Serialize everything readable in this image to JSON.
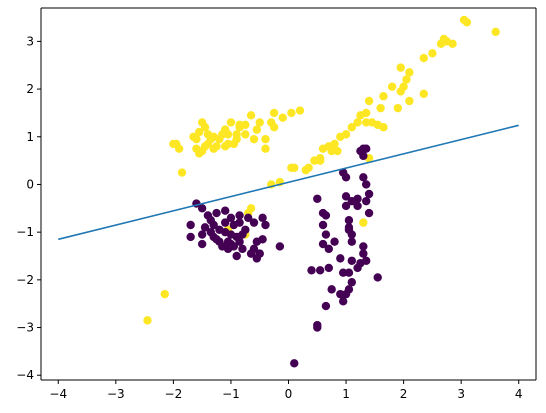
{
  "chart_data": {
    "type": "scatter",
    "title": "",
    "xlabel": "",
    "ylabel": "",
    "xlim": [
      -4.3,
      4.3
    ],
    "ylim": [
      -4.1,
      3.7
    ],
    "xticks": [
      -4,
      -3,
      -2,
      -1,
      0,
      1,
      2,
      3,
      4
    ],
    "xtick_labels": [
      "−4",
      "−3",
      "−2",
      "−1",
      "0",
      "1",
      "2",
      "3",
      "4"
    ],
    "yticks": [
      -4,
      -3,
      -2,
      -1,
      0,
      1,
      2,
      3
    ],
    "ytick_labels": [
      "−4",
      "−3",
      "−2",
      "−1",
      "0",
      "1",
      "2",
      "3"
    ],
    "grid": false,
    "colors": {
      "class_1": "#fde725",
      "class_0": "#440154",
      "line": "#1f77b4"
    },
    "series": [
      {
        "class": 1,
        "color": "#fde725",
        "points": [
          [
            3.05,
            3.45
          ],
          [
            3.1,
            3.4
          ],
          [
            2.7,
            3.05
          ],
          [
            2.75,
            3.0
          ],
          [
            2.85,
            2.95
          ],
          [
            2.65,
            2.95
          ],
          [
            3.6,
            3.2
          ],
          [
            2.5,
            2.75
          ],
          [
            2.35,
            2.65
          ],
          [
            1.95,
            2.45
          ],
          [
            2.1,
            2.35
          ],
          [
            2.05,
            2.2
          ],
          [
            2.0,
            2.05
          ],
          [
            1.95,
            1.95
          ],
          [
            1.8,
            2.05
          ],
          [
            2.1,
            1.75
          ],
          [
            1.9,
            1.6
          ],
          [
            2.35,
            1.9
          ],
          [
            1.65,
            1.85
          ],
          [
            1.6,
            1.6
          ],
          [
            1.4,
            1.75
          ],
          [
            1.25,
            1.45
          ],
          [
            1.45,
            1.3
          ],
          [
            1.35,
            1.3
          ],
          [
            1.2,
            1.3
          ],
          [
            1.35,
            1.5
          ],
          [
            1.1,
            1.2
          ],
          [
            1.65,
            1.2
          ],
          [
            1.55,
            1.25
          ],
          [
            1.0,
            1.05
          ],
          [
            0.9,
            1.0
          ],
          [
            0.8,
            0.85
          ],
          [
            0.85,
            0.7
          ],
          [
            0.7,
            0.8
          ],
          [
            0.6,
            0.75
          ],
          [
            0.55,
            0.5
          ],
          [
            0.55,
            0.55
          ],
          [
            0.45,
            0.5
          ],
          [
            0.35,
            0.35
          ],
          [
            0.3,
            0.3
          ],
          [
            0.1,
            0.35
          ],
          [
            0.75,
            0.7
          ],
          [
            1.4,
            0.55
          ],
          [
            0.05,
            1.5
          ],
          [
            0.2,
            1.55
          ],
          [
            -0.25,
            1.5
          ],
          [
            -0.1,
            1.4
          ],
          [
            -0.3,
            1.3
          ],
          [
            -0.25,
            1.2
          ],
          [
            -0.5,
            1.3
          ],
          [
            -0.65,
            1.45
          ],
          [
            -0.55,
            1.15
          ],
          [
            -0.4,
            0.95
          ],
          [
            -0.4,
            0.75
          ],
          [
            -0.6,
            0.95
          ],
          [
            -0.75,
            1.05
          ],
          [
            -0.75,
            1.25
          ],
          [
            -0.85,
            1.25
          ],
          [
            -0.9,
            1.05
          ],
          [
            -0.95,
            0.85
          ],
          [
            -1.0,
            1.3
          ],
          [
            -1.05,
            1.05
          ],
          [
            -1.05,
            0.85
          ],
          [
            -1.1,
            0.8
          ],
          [
            -1.1,
            1.15
          ],
          [
            -1.15,
            1.05
          ],
          [
            -1.2,
            0.95
          ],
          [
            -1.25,
            0.8
          ],
          [
            -1.3,
            1.0
          ],
          [
            -1.3,
            0.75
          ],
          [
            -1.35,
            0.95
          ],
          [
            -1.4,
            0.85
          ],
          [
            -1.45,
            0.8
          ],
          [
            -1.5,
            1.3
          ],
          [
            -1.5,
            0.7
          ],
          [
            -1.55,
            0.65
          ],
          [
            -1.6,
            0.95
          ],
          [
            -1.6,
            0.75
          ],
          [
            -1.65,
            1.0
          ],
          [
            -1.45,
            1.2
          ],
          [
            -1.4,
            1.05
          ],
          [
            -1.55,
            1.1
          ],
          [
            -1.9,
            0.75
          ],
          [
            -1.95,
            0.85
          ],
          [
            -2.0,
            0.85
          ],
          [
            -1.85,
            0.25
          ],
          [
            -0.85,
            1.2
          ],
          [
            -0.9,
            0.95
          ],
          [
            -0.3,
            0.0
          ],
          [
            -0.15,
            0.05
          ],
          [
            0.05,
            0.35
          ],
          [
            -0.65,
            -0.5
          ],
          [
            -0.7,
            -0.6
          ],
          [
            -0.75,
            -1.05
          ],
          [
            -1.05,
            -0.95
          ],
          [
            -2.15,
            -2.3
          ],
          [
            -2.45,
            -2.85
          ],
          [
            1.3,
            -0.8
          ]
        ]
      },
      {
        "class": 0,
        "color": "#440154",
        "points": [
          [
            -1.6,
            -0.4
          ],
          [
            -1.5,
            -0.5
          ],
          [
            -1.4,
            -0.65
          ],
          [
            -1.35,
            -0.75
          ],
          [
            -1.3,
            -0.85
          ],
          [
            -1.45,
            -0.9
          ],
          [
            -1.5,
            -1.05
          ],
          [
            -1.35,
            -1.0
          ],
          [
            -1.3,
            -1.1
          ],
          [
            -1.25,
            -0.6
          ],
          [
            -1.2,
            -0.95
          ],
          [
            -1.2,
            -1.2
          ],
          [
            -1.1,
            -0.55
          ],
          [
            -1.1,
            -0.8
          ],
          [
            -1.1,
            -1.0
          ],
          [
            -1.05,
            -1.2
          ],
          [
            -1.05,
            -1.35
          ],
          [
            -1.0,
            -0.7
          ],
          [
            -1.0,
            -1.05
          ],
          [
            -1.0,
            -1.25
          ],
          [
            -0.95,
            -0.85
          ],
          [
            -0.95,
            -1.3
          ],
          [
            -0.9,
            -1.5
          ],
          [
            -0.9,
            -1.1
          ],
          [
            -0.85,
            -0.65
          ],
          [
            -0.85,
            -1.2
          ],
          [
            -0.8,
            -1.05
          ],
          [
            -0.8,
            -1.35
          ],
          [
            -0.75,
            -0.95
          ],
          [
            -0.7,
            -0.7
          ],
          [
            -0.65,
            -1.45
          ],
          [
            -0.6,
            -1.35
          ],
          [
            -0.6,
            -0.8
          ],
          [
            -0.55,
            -1.2
          ],
          [
            -0.55,
            -1.55
          ],
          [
            -0.5,
            -1.45
          ],
          [
            -0.45,
            -0.7
          ],
          [
            -0.45,
            -1.15
          ],
          [
            -0.4,
            -0.85
          ],
          [
            -1.15,
            -1.3
          ],
          [
            -1.25,
            -1.15
          ],
          [
            -1.7,
            -0.85
          ],
          [
            -1.7,
            -1.1
          ],
          [
            -1.5,
            -1.25
          ],
          [
            -0.85,
            -0.8
          ],
          [
            -0.15,
            -1.3
          ],
          [
            0.5,
            -0.3
          ],
          [
            0.6,
            -0.6
          ],
          [
            0.65,
            -0.65
          ],
          [
            0.6,
            -0.85
          ],
          [
            0.65,
            -1.05
          ],
          [
            0.6,
            -1.25
          ],
          [
            0.7,
            -1.35
          ],
          [
            0.55,
            -1.8
          ],
          [
            0.4,
            -1.8
          ],
          [
            0.7,
            -1.75
          ],
          [
            0.75,
            -2.2
          ],
          [
            0.65,
            -2.55
          ],
          [
            0.5,
            -2.95
          ],
          [
            0.5,
            -3.0
          ],
          [
            0.1,
            -3.75
          ],
          [
            0.8,
            -1.2
          ],
          [
            0.9,
            -1.55
          ],
          [
            0.95,
            -1.85
          ],
          [
            0.9,
            -2.3
          ],
          [
            0.95,
            -2.45
          ],
          [
            1.0,
            -2.3
          ],
          [
            1.05,
            -2.2
          ],
          [
            1.1,
            -2.05
          ],
          [
            1.05,
            -0.75
          ],
          [
            1.05,
            -0.9
          ],
          [
            1.05,
            -0.95
          ],
          [
            1.1,
            -1.05
          ],
          [
            1.1,
            -1.2
          ],
          [
            1.1,
            -1.6
          ],
          [
            1.05,
            -1.85
          ],
          [
            1.2,
            -0.3
          ],
          [
            1.2,
            -0.45
          ],
          [
            1.1,
            -0.35
          ],
          [
            1.0,
            -0.45
          ],
          [
            1.0,
            -0.25
          ],
          [
            1.0,
            0.15
          ],
          [
            1.3,
            0.6
          ],
          [
            1.25,
            0.7
          ],
          [
            1.3,
            0.75
          ],
          [
            1.35,
            0.75
          ],
          [
            1.3,
            0.15
          ],
          [
            1.35,
            0.0
          ],
          [
            1.4,
            -0.2
          ],
          [
            1.35,
            -0.35
          ],
          [
            1.4,
            -0.6
          ],
          [
            1.3,
            -1.3
          ],
          [
            1.3,
            -1.45
          ],
          [
            1.35,
            -1.6
          ],
          [
            1.25,
            -1.65
          ],
          [
            1.2,
            -1.75
          ],
          [
            1.55,
            -1.95
          ],
          [
            0.95,
            0.25
          ]
        ]
      }
    ],
    "decision_line": {
      "x": [
        -4,
        4
      ],
      "y": [
        -1.15,
        1.24
      ],
      "color": "#1f77b4"
    }
  }
}
